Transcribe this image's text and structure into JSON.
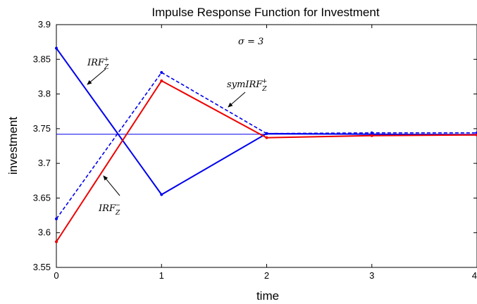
{
  "chart_data": {
    "type": "line",
    "title": "Impulse Response Function for Investment",
    "xlabel": "time",
    "ylabel": "investment",
    "xlim": [
      0,
      4
    ],
    "ylim": [
      3.55,
      3.9
    ],
    "xticks": [
      "0",
      "1",
      "2",
      "3",
      "4"
    ],
    "yticks": [
      "3.55",
      "3.6",
      "3.65",
      "3.7",
      "3.75",
      "3.8",
      "3.85",
      "3.9"
    ],
    "grid": false,
    "x": [
      0,
      1,
      2,
      3,
      4
    ],
    "series": [
      {
        "key": "irf_plus",
        "color": "#0000ee",
        "dash": "solid",
        "values": [
          3.866,
          3.655,
          3.743,
          3.742,
          3.741
        ]
      },
      {
        "key": "sym_irf_plus",
        "color": "#0000ee",
        "dash": "dashed",
        "values": [
          3.62,
          3.831,
          3.743,
          3.744,
          3.744
        ]
      },
      {
        "key": "irf_minus",
        "color": "#ee0000",
        "dash": "solid",
        "values": [
          3.587,
          3.819,
          3.737,
          3.74,
          3.741
        ]
      }
    ],
    "steady_state": {
      "value": 3.742,
      "color": "#0000ee"
    },
    "annotations": {
      "sigma_label": "σ = 3",
      "irf_plus": {
        "main": "IRF",
        "sub": "Z",
        "sup": "+"
      },
      "sym_irf_plus": {
        "main": "symIRF",
        "sub": "Z",
        "sup": "+"
      },
      "irf_minus": {
        "main": "IRF",
        "sub": "Z",
        "sup": "−"
      }
    }
  }
}
